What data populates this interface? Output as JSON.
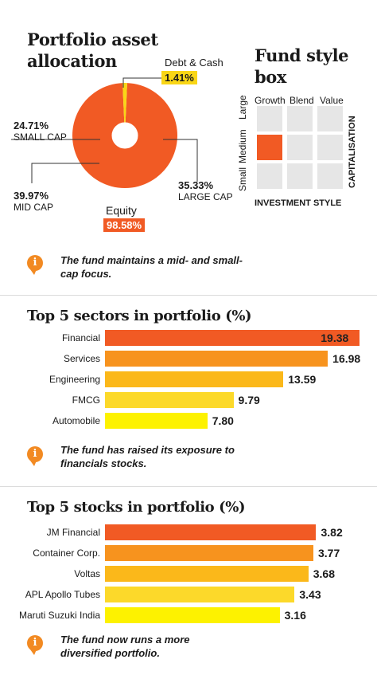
{
  "allocation": {
    "title_line1": "Portfolio asset",
    "title_line2": "allocation",
    "debt_label": "Debt & Cash",
    "debt_value": "1.41%",
    "small_value": "24.71%",
    "small_label": "SMALL CAP",
    "mid_value": "39.97%",
    "mid_label": "MID CAP",
    "large_value": "35.33%",
    "large_label": "LARGE CAP",
    "equity_label": "Equity",
    "equity_value": "98.58%",
    "colors": {
      "equity": "#f15a24",
      "debt": "#f9d616"
    }
  },
  "style_box": {
    "title_line1": "Fund style",
    "title_line2": "box",
    "col_labels": [
      "Growth",
      "Blend",
      "Value"
    ],
    "row_labels": [
      "Large",
      "Medium",
      "Small"
    ],
    "y_axis": "CAPITALISATION",
    "x_axis": "INVESTMENT STYLE",
    "selected": "Medium Growth"
  },
  "notes": {
    "note1": "The fund maintains a mid- and small-cap focus.",
    "note2": "The fund has raised its exposure to financials stocks.",
    "note3": "The fund now runs a more diversified portfolio."
  },
  "chart_data": [
    {
      "type": "pie",
      "title": "Portfolio asset allocation",
      "categories": [
        "Equity",
        "Debt & Cash"
      ],
      "values": [
        98.58,
        1.41
      ],
      "annotations": [
        "24.71% SMALL CAP",
        "39.97% MID CAP",
        "35.33% LARGE CAP"
      ]
    },
    {
      "type": "bar",
      "title": "Top 5 sectors in portfolio (%)",
      "categories": [
        "Financial",
        "Services",
        "Engineering",
        "FMCG",
        "Automobile"
      ],
      "values": [
        19.38,
        16.98,
        13.59,
        9.79,
        7.8
      ],
      "value_labels": [
        "19.38",
        "16.98",
        "13.59",
        "9.79",
        "7.80"
      ],
      "colors": [
        "#f15a24",
        "#f7931e",
        "#fbb81a",
        "#fcd92a",
        "#fdf200"
      ]
    },
    {
      "type": "bar",
      "title": "Top 5 stocks in portfolio (%)",
      "categories": [
        "JM Financial",
        "Container Corp.",
        "Voltas",
        "APL Apollo Tubes",
        "Maruti Suzuki India"
      ],
      "values": [
        3.82,
        3.77,
        3.68,
        3.43,
        3.16
      ],
      "value_labels": [
        "3.82",
        "3.77",
        "3.68",
        "3.43",
        "3.16"
      ],
      "colors": [
        "#f15a24",
        "#f7931e",
        "#fbb81a",
        "#fcd92a",
        "#fdf200"
      ]
    }
  ]
}
